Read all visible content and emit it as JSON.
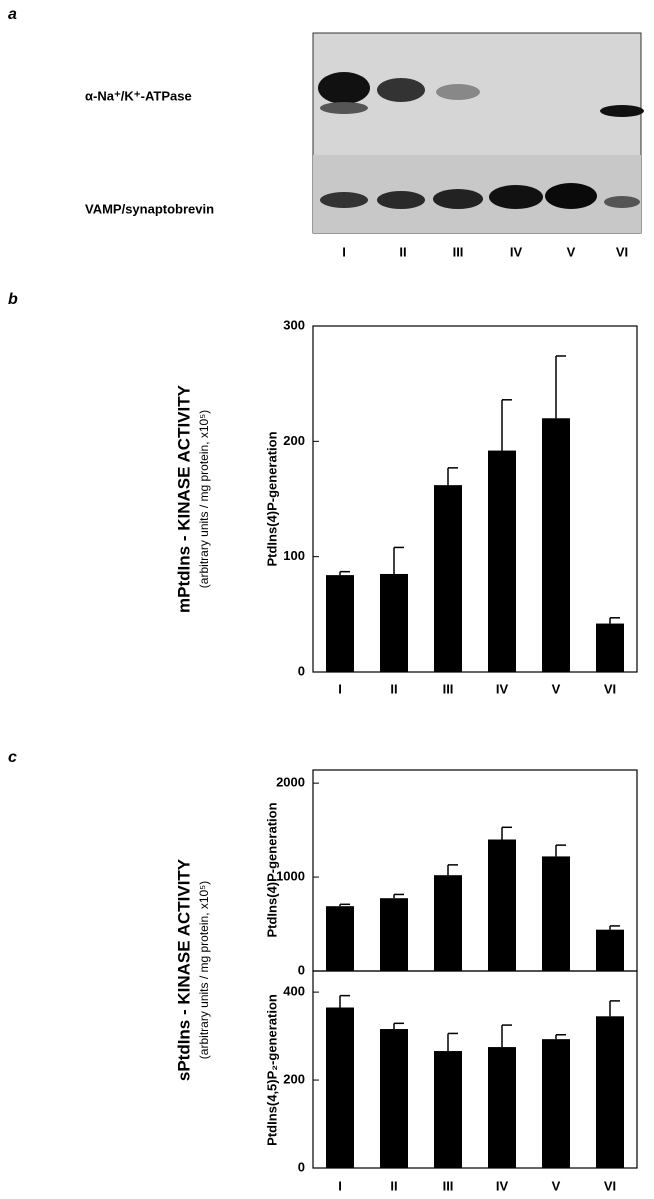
{
  "panel_labels": [
    "a",
    "b",
    "c"
  ],
  "blot": {
    "bands": [
      "α-Na⁺/K⁺-ATPase",
      "VAMP/synaptobrevin"
    ],
    "lanes": [
      "I",
      "II",
      "III",
      "IV",
      "V",
      "VI"
    ]
  },
  "chart_data": [
    {
      "type": "bar",
      "group_label": "mPtdIns - KINASE ACTIVITY",
      "group_sublabel": "(arbitrary units / mg protein, x10⁵)",
      "ylabel": "PtdIns(4)P-generation",
      "categories": [
        "I",
        "II",
        "III",
        "IV",
        "V",
        "VI"
      ],
      "values": [
        84,
        85,
        162,
        192,
        220,
        42
      ],
      "errors": [
        3,
        23,
        15,
        44,
        54,
        5
      ],
      "color": "#000000",
      "ylim": [
        0,
        300
      ],
      "yticks": [
        0,
        100,
        200,
        300
      ]
    },
    {
      "type": "bar",
      "group_label": "sPtdIns - KINASE ACTIVITY",
      "group_sublabel": "(arbitrary units / mg protein, x10⁵)",
      "ylabel": "PtdIns(4)P-generation",
      "values": [
        690,
        775,
        1020,
        1400,
        1220,
        440
      ],
      "errors": [
        20,
        40,
        110,
        130,
        120,
        40
      ],
      "color": "#000000",
      "ylim": [
        0,
        2140
      ],
      "yticks": [
        0,
        1000,
        2000
      ]
    },
    {
      "type": "bar",
      "ylabel": "PtdIns(4,5)P₂-generation",
      "categories": [
        "I",
        "II",
        "III",
        "IV",
        "V",
        "VI"
      ],
      "values": [
        365,
        316,
        266,
        275,
        293,
        345
      ],
      "errors": [
        27,
        13,
        40,
        50,
        10,
        35
      ],
      "color": "#000000",
      "ylim": [
        0,
        448
      ],
      "yticks": [
        0,
        200,
        400
      ]
    }
  ]
}
